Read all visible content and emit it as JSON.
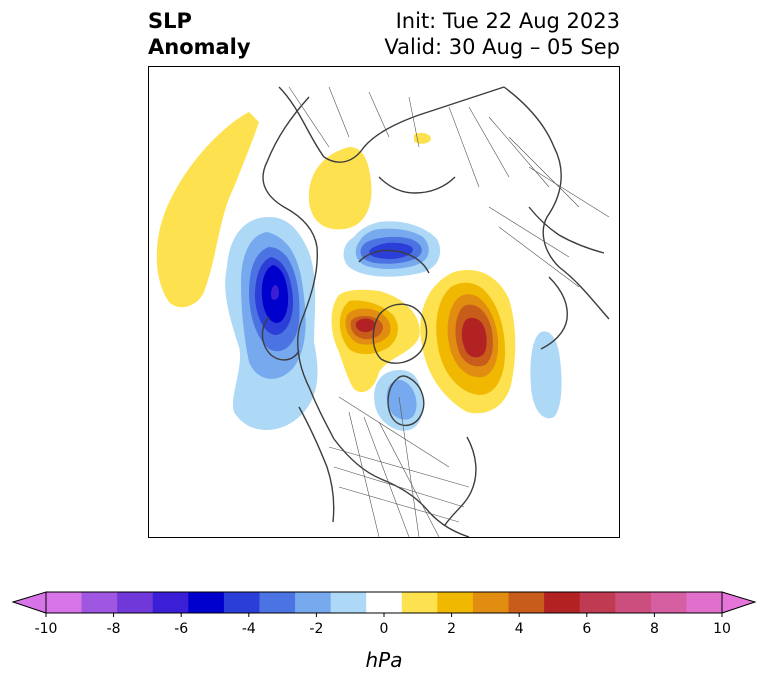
{
  "title": {
    "line1": "SLP",
    "line2": "Anomaly",
    "init": "Init: Tue 22 Aug 2023",
    "valid": "Valid: 30 Aug – 05 Sep"
  },
  "colorbar": {
    "unit": "hPa",
    "ticks": [
      "-10",
      "-8",
      "-6",
      "-4",
      "-2",
      "0",
      "2",
      "4",
      "6",
      "8",
      "10"
    ],
    "levels": [
      -10,
      -9,
      -8,
      -7,
      -6,
      -5,
      -4,
      -3,
      -2,
      -1,
      1,
      2,
      3,
      4,
      5,
      6,
      7,
      8,
      9,
      10
    ],
    "colors": [
      "#d674e8",
      "#9f56e0",
      "#7038d8",
      "#3a1fd6",
      "#0000cd",
      "#2b3fd8",
      "#4c73e2",
      "#77a9ee",
      "#add8f6",
      "#ffffff",
      "#fde14e",
      "#f0b800",
      "#e08d12",
      "#c85c1a",
      "#b22222",
      "#c03a52",
      "#cc4e7c",
      "#d65fa2",
      "#e070cc"
    ],
    "extend_low_color": "#d674e8",
    "extend_high_color": "#e675da"
  },
  "map": {
    "projection": "north-polar-stereographic",
    "features": [
      {
        "name": "negative-anomaly-north-pacific",
        "sign": "negative",
        "peak": -6
      },
      {
        "name": "negative-anomaly-arctic",
        "sign": "negative",
        "peak": -5
      },
      {
        "name": "negative-anomaly-hudson-bay",
        "sign": "negative",
        "peak": -3
      },
      {
        "name": "negative-anomaly-north-atlantic",
        "sign": "negative",
        "peak": -1
      },
      {
        "name": "positive-anomaly-greenland",
        "sign": "positive",
        "peak": 5
      },
      {
        "name": "positive-anomaly-scandinavia",
        "sign": "positive",
        "peak": 5
      },
      {
        "name": "positive-anomaly-siberia",
        "sign": "positive",
        "peak": 1
      },
      {
        "name": "positive-anomaly-pacific-arc",
        "sign": "positive",
        "peak": 1
      }
    ]
  }
}
